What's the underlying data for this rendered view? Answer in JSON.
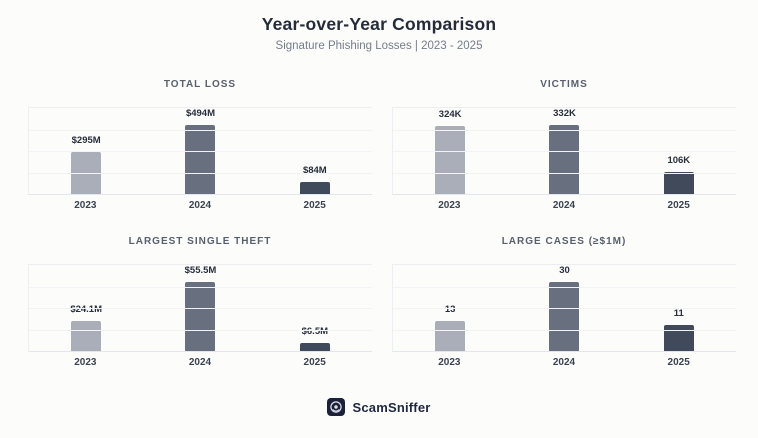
{
  "header": {
    "title": "Year-over-Year Comparison",
    "subtitle": "Signature Phishing Losses | 2023 - 2025"
  },
  "colors": {
    "bar_2023": "#a9aeb9",
    "bar_2024": "#68707f",
    "bar_2025": "#414a5a",
    "title": "#242b39",
    "subtitle": "#747d8b",
    "chart_title": "#58606e",
    "brand_navy": "#1a2138"
  },
  "chart_data": [
    {
      "type": "bar",
      "title": "TOTAL LOSS",
      "categories": [
        "2023",
        "2024",
        "2025"
      ],
      "values": [
        295,
        494,
        84
      ],
      "value_labels": [
        "$295M",
        "$494M",
        "$84M"
      ],
      "unit": "USD millions",
      "ylim": [
        0,
        600
      ],
      "grid": true,
      "legend": "none"
    },
    {
      "type": "bar",
      "title": "VICTIMS",
      "categories": [
        "2023",
        "2024",
        "2025"
      ],
      "values": [
        324,
        332,
        106
      ],
      "value_labels": [
        "324K",
        "332K",
        "106K"
      ],
      "unit": "thousands of victims",
      "ylim": [
        0,
        400
      ],
      "grid": true,
      "legend": "none"
    },
    {
      "type": "bar",
      "title": "LARGEST SINGLE THEFT",
      "categories": [
        "2023",
        "2024",
        "2025"
      ],
      "values": [
        24.1,
        55.5,
        6.5
      ],
      "value_labels": [
        "$24.1M",
        "$55.5M",
        "$6.5M"
      ],
      "unit": "USD millions",
      "ylim": [
        0,
        70
      ],
      "grid": true,
      "legend": "none"
    },
    {
      "type": "bar",
      "title": "LARGE CASES (≥$1M)",
      "categories": [
        "2023",
        "2024",
        "2025"
      ],
      "values": [
        13,
        30,
        11
      ],
      "value_labels": [
        "13",
        "30",
        "11"
      ],
      "unit": "count",
      "ylim": [
        0,
        38
      ],
      "grid": true,
      "legend": "none"
    }
  ],
  "footer": {
    "brand": "ScamSniffer",
    "logo_icon": "scamsniffer-logo"
  }
}
